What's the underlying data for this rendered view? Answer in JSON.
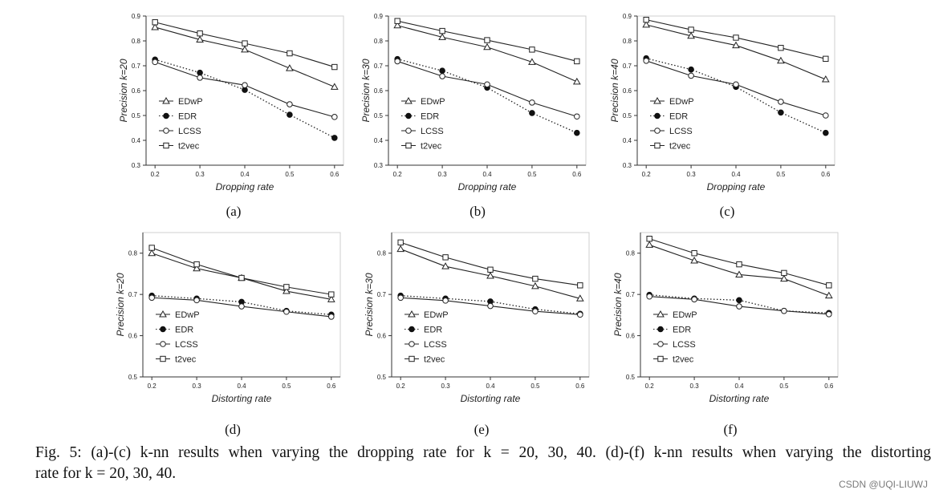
{
  "legend_labels": [
    "EDwP",
    "EDR",
    "LCSS",
    "t2vec"
  ],
  "chart_data": [
    {
      "type": "line",
      "panel_label": "(a)",
      "xlabel": "Dropping rate",
      "ylabel": "Precision k=20",
      "x": [
        0.2,
        0.3,
        0.4,
        0.5,
        0.6
      ],
      "xticks": [
        "0.2",
        "0.3",
        "0.4",
        "0.5",
        "0.6"
      ],
      "ylim": [
        0.3,
        0.9
      ],
      "yticks": [
        "0.3",
        "0.4",
        "0.5",
        "0.6",
        "0.7",
        "0.8",
        "0.9"
      ],
      "legend_position": "left",
      "series": [
        {
          "name": "EDwP",
          "marker": "triangle",
          "line": "solid",
          "values": [
            0.855,
            0.805,
            0.765,
            0.69,
            0.615
          ]
        },
        {
          "name": "EDR",
          "marker": "filled-circle",
          "line": "dotted",
          "values": [
            0.725,
            0.672,
            0.603,
            0.503,
            0.41
          ]
        },
        {
          "name": "LCSS",
          "marker": "open-circle",
          "line": "solid",
          "values": [
            0.715,
            0.652,
            0.622,
            0.545,
            0.494
          ]
        },
        {
          "name": "t2vec",
          "marker": "square",
          "line": "solid",
          "values": [
            0.875,
            0.83,
            0.79,
            0.75,
            0.695
          ]
        }
      ]
    },
    {
      "type": "line",
      "panel_label": "(b)",
      "xlabel": "Dropping rate",
      "ylabel": "Precision k=30",
      "x": [
        0.2,
        0.3,
        0.4,
        0.5,
        0.6
      ],
      "xticks": [
        "0.2",
        "0.3",
        "0.4",
        "0.5",
        "0.6"
      ],
      "ylim": [
        0.3,
        0.9
      ],
      "yticks": [
        "0.3",
        "0.4",
        "0.5",
        "0.6",
        "0.7",
        "0.8",
        "0.9"
      ],
      "legend_position": "left",
      "series": [
        {
          "name": "EDwP",
          "marker": "triangle",
          "line": "solid",
          "values": [
            0.862,
            0.815,
            0.775,
            0.715,
            0.636
          ]
        },
        {
          "name": "EDR",
          "marker": "filled-circle",
          "line": "dotted",
          "values": [
            0.727,
            0.68,
            0.612,
            0.51,
            0.43
          ]
        },
        {
          "name": "LCSS",
          "marker": "open-circle",
          "line": "solid",
          "values": [
            0.718,
            0.658,
            0.625,
            0.552,
            0.496
          ]
        },
        {
          "name": "t2vec",
          "marker": "square",
          "line": "solid",
          "values": [
            0.88,
            0.84,
            0.803,
            0.765,
            0.718
          ]
        }
      ]
    },
    {
      "type": "line",
      "panel_label": "(c)",
      "xlabel": "Dropping rate",
      "ylabel": "Precision k=40",
      "x": [
        0.2,
        0.3,
        0.4,
        0.5,
        0.6
      ],
      "xticks": [
        "0.2",
        "0.3",
        "0.4",
        "0.5",
        "0.6"
      ],
      "ylim": [
        0.3,
        0.9
      ],
      "yticks": [
        "0.3",
        "0.4",
        "0.5",
        "0.6",
        "0.7",
        "0.8",
        "0.9"
      ],
      "legend_position": "left",
      "series": [
        {
          "name": "EDwP",
          "marker": "triangle",
          "line": "solid",
          "values": [
            0.865,
            0.82,
            0.782,
            0.72,
            0.645
          ]
        },
        {
          "name": "EDR",
          "marker": "filled-circle",
          "line": "dotted",
          "values": [
            0.73,
            0.685,
            0.615,
            0.512,
            0.43
          ]
        },
        {
          "name": "LCSS",
          "marker": "open-circle",
          "line": "solid",
          "values": [
            0.72,
            0.66,
            0.625,
            0.555,
            0.5
          ]
        },
        {
          "name": "t2vec",
          "marker": "square",
          "line": "solid",
          "values": [
            0.885,
            0.845,
            0.813,
            0.772,
            0.728
          ]
        }
      ]
    },
    {
      "type": "line",
      "panel_label": "(d)",
      "xlabel": "Distorting rate",
      "ylabel": "Precision k=20",
      "x": [
        0.2,
        0.3,
        0.4,
        0.5,
        0.6
      ],
      "xticks": [
        "0.2",
        "0.3",
        "0.4",
        "0.5",
        "0.6"
      ],
      "ylim": [
        0.5,
        0.85
      ],
      "yticks": [
        "0.5",
        "0.6",
        "0.7",
        "0.8"
      ],
      "legend_position": "left",
      "series": [
        {
          "name": "EDwP",
          "marker": "triangle",
          "line": "solid",
          "values": [
            0.8,
            0.763,
            0.74,
            0.708,
            0.688
          ]
        },
        {
          "name": "EDR",
          "marker": "filled-circle",
          "line": "dotted",
          "values": [
            0.697,
            0.69,
            0.682,
            0.66,
            0.651
          ]
        },
        {
          "name": "LCSS",
          "marker": "open-circle",
          "line": "solid",
          "values": [
            0.692,
            0.686,
            0.671,
            0.658,
            0.646
          ]
        },
        {
          "name": "t2vec",
          "marker": "square",
          "line": "solid",
          "values": [
            0.813,
            0.773,
            0.74,
            0.718,
            0.7
          ]
        }
      ]
    },
    {
      "type": "line",
      "panel_label": "(e)",
      "xlabel": "Distorting rate",
      "ylabel": "Precision k=30",
      "x": [
        0.2,
        0.3,
        0.4,
        0.5,
        0.6
      ],
      "xticks": [
        "0.2",
        "0.3",
        "0.4",
        "0.5",
        "0.6"
      ],
      "ylim": [
        0.5,
        0.85
      ],
      "yticks": [
        "0.5",
        "0.6",
        "0.7",
        "0.8"
      ],
      "legend_position": "left",
      "series": [
        {
          "name": "EDwP",
          "marker": "triangle",
          "line": "solid",
          "values": [
            0.81,
            0.768,
            0.745,
            0.72,
            0.69
          ]
        },
        {
          "name": "EDR",
          "marker": "filled-circle",
          "line": "dotted",
          "values": [
            0.697,
            0.69,
            0.683,
            0.664,
            0.653
          ]
        },
        {
          "name": "LCSS",
          "marker": "open-circle",
          "line": "solid",
          "values": [
            0.692,
            0.685,
            0.672,
            0.659,
            0.651
          ]
        },
        {
          "name": "t2vec",
          "marker": "square",
          "line": "solid",
          "values": [
            0.826,
            0.79,
            0.76,
            0.738,
            0.722
          ]
        }
      ]
    },
    {
      "type": "line",
      "panel_label": "(f)",
      "xlabel": "Distorting rate",
      "ylabel": "Precision k=40",
      "x": [
        0.2,
        0.3,
        0.4,
        0.5,
        0.6
      ],
      "xticks": [
        "0.2",
        "0.3",
        "0.4",
        "0.5",
        "0.6"
      ],
      "ylim": [
        0.5,
        0.85
      ],
      "yticks": [
        "0.5",
        "0.6",
        "0.7",
        "0.8"
      ],
      "legend_position": "left",
      "series": [
        {
          "name": "EDwP",
          "marker": "triangle",
          "line": "solid",
          "values": [
            0.82,
            0.782,
            0.748,
            0.738,
            0.697
          ]
        },
        {
          "name": "EDR",
          "marker": "filled-circle",
          "line": "dotted",
          "values": [
            0.699,
            0.69,
            0.686,
            0.66,
            0.655
          ]
        },
        {
          "name": "LCSS",
          "marker": "open-circle",
          "line": "solid",
          "values": [
            0.695,
            0.688,
            0.671,
            0.66,
            0.652
          ]
        },
        {
          "name": "t2vec",
          "marker": "square",
          "line": "solid",
          "values": [
            0.835,
            0.8,
            0.773,
            0.752,
            0.722
          ]
        }
      ]
    }
  ],
  "caption": {
    "line1": "Fig. 5: (a)-(c) k-nn results when varying the dropping rate for k = 20, 30, 40. (d)-(f) k-nn results when varying the distorting",
    "line2": "rate for k = 20, 30, 40."
  },
  "watermark": "CSDN @UQI-LIUWJ"
}
